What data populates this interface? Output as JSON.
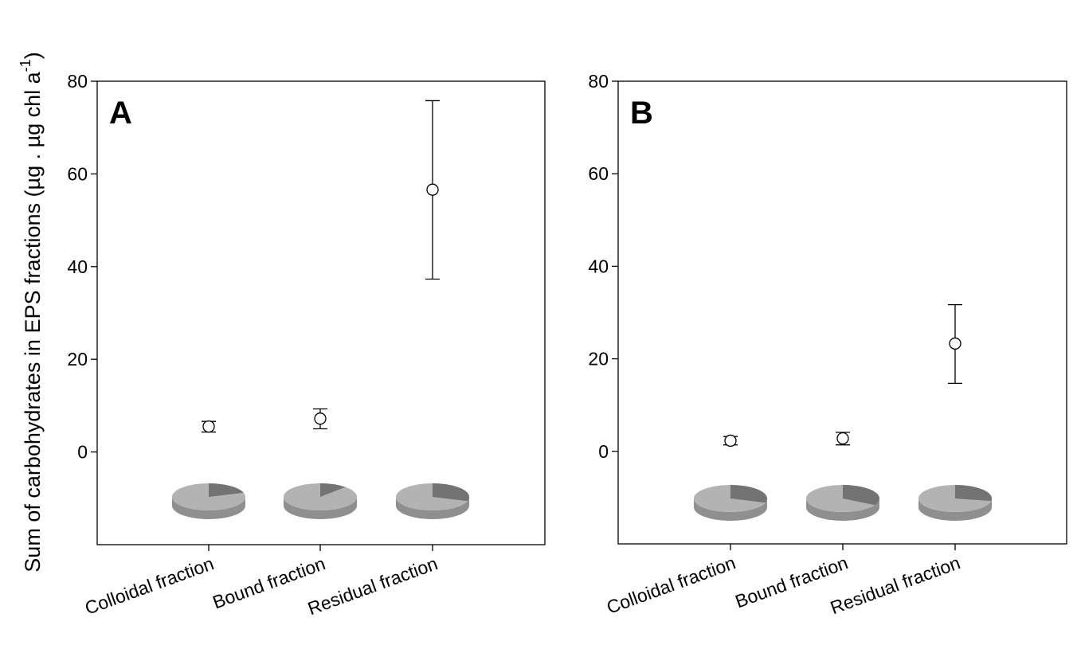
{
  "chart_data": {
    "type": "scatter",
    "ylabel": "Sum of carbohydrates in EPS fractions (µg . µg chl a",
    "ylabel_superscript": "-1",
    "ylabel_close": ")",
    "categories": [
      "Colloidal fraction",
      "Bound fraction",
      "Residual fraction"
    ],
    "ylim": [
      -20,
      80
    ],
    "yticks": [
      0,
      20,
      40,
      60,
      80
    ],
    "grid": false,
    "panels": [
      {
        "letter": "A",
        "points": [
          {
            "category": "Colloidal fraction",
            "mean": 5.5,
            "lower": 4.3,
            "upper": 6.6
          },
          {
            "category": "Bound fraction",
            "mean": 7.2,
            "lower": 5.0,
            "upper": 9.3
          },
          {
            "category": "Residual fraction",
            "mean": 56.6,
            "lower": 37.3,
            "upper": 75.8
          }
        ],
        "pies": [
          {
            "category": "Colloidal fraction",
            "dark_fraction": 0.2
          },
          {
            "category": "Bound fraction",
            "dark_fraction": 0.12
          },
          {
            "category": "Residual fraction",
            "dark_fraction": 0.3
          }
        ]
      },
      {
        "letter": "B",
        "points": [
          {
            "category": "Colloidal fraction",
            "mean": 2.3,
            "lower": 1.4,
            "upper": 3.2
          },
          {
            "category": "Bound fraction",
            "mean": 2.8,
            "lower": 1.4,
            "upper": 4.1
          },
          {
            "category": "Residual fraction",
            "mean": 23.3,
            "lower": 14.7,
            "upper": 31.7
          }
        ],
        "pies": [
          {
            "category": "Colloidal fraction",
            "dark_fraction": 0.3
          },
          {
            "category": "Bound fraction",
            "dark_fraction": 0.33
          },
          {
            "category": "Residual fraction",
            "dark_fraction": 0.28
          }
        ]
      }
    ],
    "colors": {
      "pie_light": "#b3b3b3",
      "pie_dark": "#737373",
      "pie_light_side": "#8f8f8f",
      "pie_dark_side": "#5a5a5a",
      "marker_fill": "#ffffff",
      "line": "#000000"
    }
  }
}
